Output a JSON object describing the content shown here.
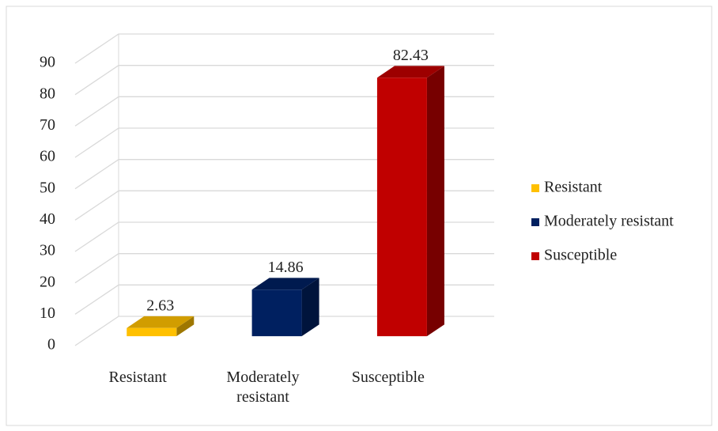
{
  "chart_data": {
    "type": "bar3d",
    "categories": [
      "Resistant",
      "Moderately resistant",
      "Susceptible"
    ],
    "values": [
      2.63,
      14.86,
      82.43
    ],
    "colors": [
      "#ffc000",
      "#002060",
      "#c00000"
    ],
    "ylim": [
      0,
      90
    ],
    "yticks": [
      0,
      10,
      20,
      30,
      40,
      50,
      60,
      70,
      80,
      90
    ],
    "grid": true,
    "legend": "right"
  }
}
